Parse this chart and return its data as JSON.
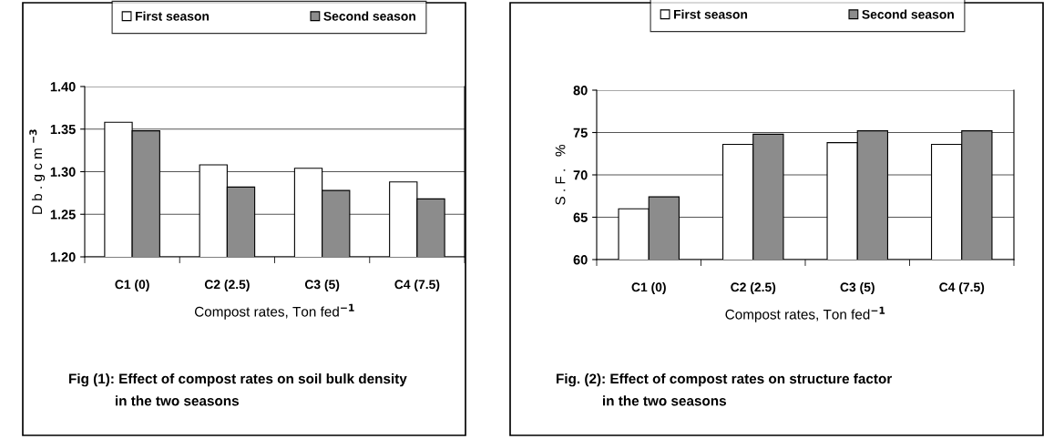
{
  "chart_data": [
    {
      "type": "bar",
      "categories": [
        "C1 (0)",
        "C2 (2.5)",
        "C3 (5)",
        "C4 (7.5)"
      ],
      "series": [
        {
          "name": "First season",
          "color": "#ffffff",
          "values": [
            1.358,
            1.308,
            1.304,
            1.288
          ]
        },
        {
          "name": "Second season",
          "color": "#8c8c8c",
          "values": [
            1.348,
            1.282,
            1.278,
            1.268
          ]
        }
      ],
      "ylim": [
        1.2,
        1.4
      ],
      "yticks": [
        {
          "value": 1.2,
          "label": "1.20"
        },
        {
          "value": 1.25,
          "label": "1.25"
        },
        {
          "value": 1.3,
          "label": "1.30"
        },
        {
          "value": 1.35,
          "label": "1.35"
        },
        {
          "value": 1.4,
          "label": "1.40"
        }
      ],
      "xlabel": "Compost rates, Ton fed$^{−1}$",
      "ylabel": "D b . g c m $^{−3}$",
      "grid": "y",
      "legend": "top",
      "annotations": [
        "Fig (1): Effect of compost rates on soil bulk density\n            in the two seasons"
      ]
    },
    {
      "type": "bar",
      "categories": [
        "C1 (0)",
        "C2 (2.5)",
        "C3 (5)",
        "C4 (7.5)"
      ],
      "series": [
        {
          "name": "First season",
          "color": "#ffffff",
          "values": [
            66.0,
            73.6,
            73.8,
            73.6
          ]
        },
        {
          "name": "Second season",
          "color": "#8c8c8c",
          "values": [
            67.4,
            74.8,
            75.2,
            75.2
          ]
        }
      ],
      "ylim": [
        60,
        80
      ],
      "yticks": [
        60,
        65,
        70,
        75,
        80
      ],
      "xlabel": "Compost rates, Ton fed$^{−1}$",
      "ylabel": "S . F .   %",
      "grid": "y",
      "legend": "top",
      "annotations": [
        "Fig. (2): Effect of compost rates on structure factor\n            in the two seasons"
      ]
    }
  ]
}
